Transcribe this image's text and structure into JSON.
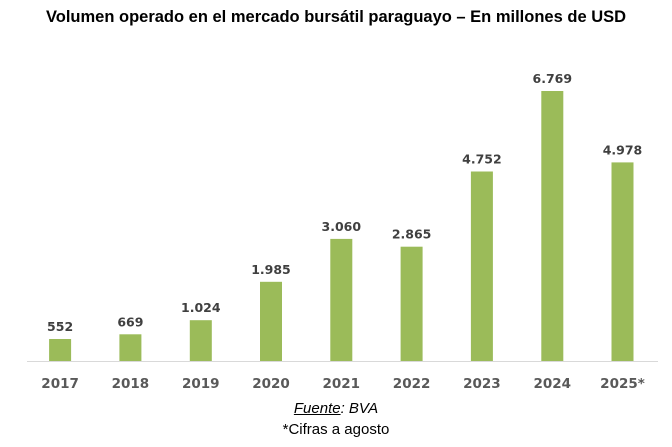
{
  "chart_data": {
    "type": "bar",
    "title": "Volumen operado en el mercado bursátil paraguayo – En millones de USD",
    "xlabel": "",
    "ylabel": "",
    "categories": [
      "2017",
      "2018",
      "2019",
      "2020",
      "2021",
      "2022",
      "2023",
      "2024",
      "2025*"
    ],
    "values": [
      552,
      669,
      1024,
      1985,
      3060,
      2865,
      4752,
      6769,
      4978
    ],
    "value_labels": [
      "552",
      "669",
      "1.024",
      "1.985",
      "3.060",
      "2.865",
      "4.752",
      "6.769",
      "4.978"
    ],
    "ylim": [
      0,
      7500
    ],
    "grid": false,
    "legend": "none",
    "bar_color": "#9bbb59"
  },
  "footer": {
    "source_label": "Fuente",
    "source_value": ": BVA",
    "note": "*Cifras a agosto"
  }
}
